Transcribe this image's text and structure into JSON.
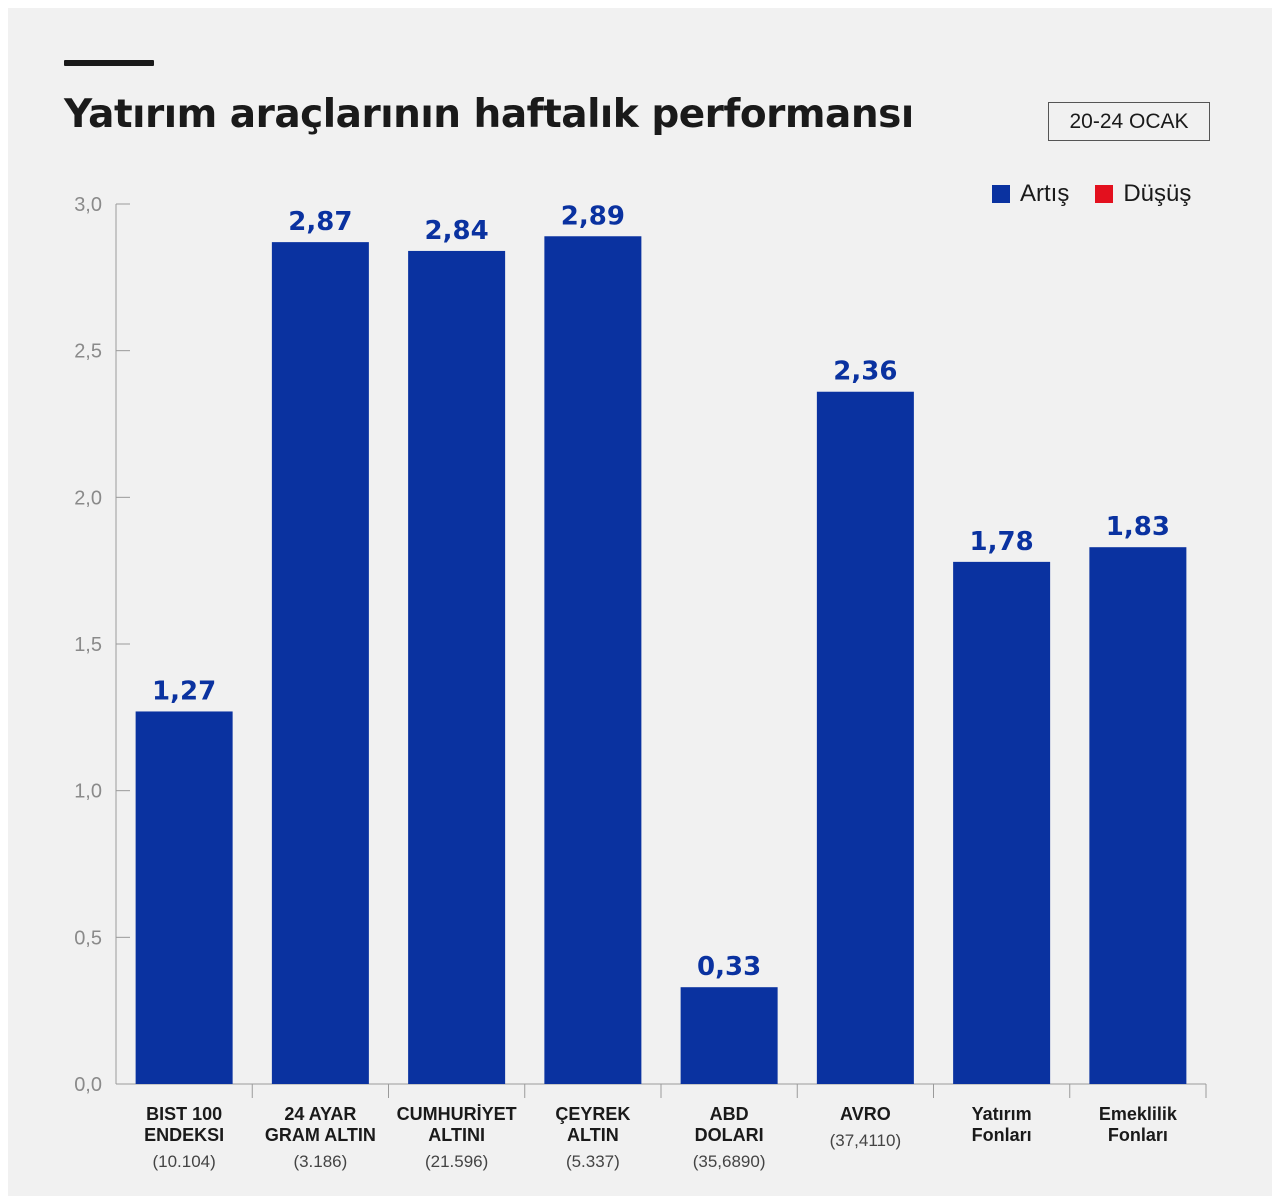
{
  "title": "Yatırım araçlarının haftalık performansı",
  "date_badge": "20-24 OCAK",
  "legend": [
    {
      "label": "Artış",
      "color": "#0a32a0"
    },
    {
      "label": "Düşüş",
      "color": "#e3101e"
    }
  ],
  "chart_data": {
    "type": "bar",
    "categories": [
      {
        "name": [
          "BIST 100",
          "ENDEKSI"
        ],
        "sub": "(10.104)"
      },
      {
        "name": [
          "24 AYAR",
          "GRAM ALTIN"
        ],
        "sub": "(3.186)"
      },
      {
        "name": [
          "CUMHURİYET",
          "ALTINI"
        ],
        "sub": "(21.596)"
      },
      {
        "name": [
          "ÇEYREK",
          "ALTIN"
        ],
        "sub": "(5.337)"
      },
      {
        "name": [
          "ABD",
          "DOLARI"
        ],
        "sub": "(35,6890)"
      },
      {
        "name": [
          "AVRO"
        ],
        "sub": "(37,4110)"
      },
      {
        "name": [
          "Yatırım",
          "Fonları"
        ],
        "sub": ""
      },
      {
        "name": [
          "Emeklilik",
          "Fonları"
        ],
        "sub": ""
      }
    ],
    "values": [
      1.27,
      2.87,
      2.84,
      2.89,
      0.33,
      2.36,
      1.78,
      1.83
    ],
    "value_labels": [
      "1,27",
      "2,87",
      "2,84",
      "2,89",
      "0,33",
      "2,36",
      "1,78",
      "1,83"
    ],
    "ylim": [
      0,
      3.0
    ],
    "yticks": [
      0,
      0.5,
      1.0,
      1.5,
      2.0,
      2.5,
      3.0
    ],
    "ytick_labels": [
      "0,0",
      "0,5",
      "1,0",
      "1,5",
      "2,0",
      "2,5",
      "3,0"
    ],
    "grid": false,
    "legend_position": "top-right",
    "bar_color": "#0a32a0",
    "xlabel": "",
    "ylabel": ""
  }
}
